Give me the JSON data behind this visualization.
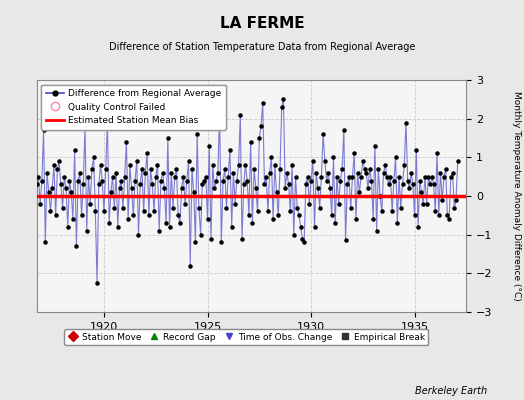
{
  "title": "LA FERME",
  "subtitle": "Difference of Station Temperature Data from Regional Average",
  "ylabel": "Monthly Temperature Anomaly Difference (°C)",
  "xlabel_bottom": "Berkeley Earth",
  "ylim": [
    -3,
    3
  ],
  "yticks": [
    -3,
    -2,
    -1,
    0,
    1,
    2,
    3
  ],
  "bias_value": 0.0,
  "bias_color": "#ff0000",
  "line_color": "#6666cc",
  "marker_color": "#000000",
  "bg_color": "#e8e8e8",
  "plot_bg_color": "#f5f5f5",
  "x_start_year": 1916.75,
  "x_end_year": 1937.5,
  "xticks": [
    1920,
    1925,
    1930,
    1935
  ],
  "data": [
    0.3,
    0.5,
    -0.2,
    0.4,
    1.7,
    -1.2,
    0.6,
    0.1,
    -0.4,
    0.2,
    0.8,
    -0.5,
    0.7,
    0.9,
    0.3,
    -0.3,
    0.5,
    0.2,
    -0.8,
    0.4,
    0.1,
    -0.6,
    1.2,
    -1.3,
    0.4,
    0.6,
    -0.5,
    0.3,
    1.8,
    -0.9,
    0.5,
    -0.2,
    0.7,
    1.0,
    -0.4,
    -2.25,
    0.3,
    0.8,
    0.4,
    -0.4,
    0.7,
    1.9,
    -0.7,
    0.1,
    0.5,
    -0.3,
    0.6,
    -0.8,
    0.2,
    0.4,
    -0.3,
    0.5,
    1.4,
    -0.6,
    0.8,
    0.2,
    -0.5,
    0.4,
    0.9,
    -1.0,
    0.3,
    0.7,
    -0.4,
    0.6,
    1.1,
    -0.5,
    0.7,
    0.3,
    -0.4,
    0.5,
    0.8,
    -0.9,
    0.4,
    0.6,
    0.2,
    -0.7,
    1.5,
    -0.8,
    0.6,
    -0.3,
    0.5,
    0.7,
    -0.5,
    -0.7,
    0.2,
    0.5,
    -0.2,
    0.4,
    0.9,
    -1.8,
    0.7,
    0.1,
    -1.2,
    1.6,
    -0.3,
    -1.0,
    0.3,
    0.4,
    0.5,
    -0.6,
    1.3,
    -1.1,
    0.8,
    0.2,
    0.4,
    0.6,
    2.2,
    -1.2,
    0.4,
    0.7,
    -0.3,
    0.5,
    1.2,
    -0.8,
    0.6,
    -0.2,
    0.4,
    0.8,
    2.1,
    -1.1,
    0.3,
    0.8,
    0.4,
    -0.5,
    1.4,
    -0.7,
    0.7,
    0.2,
    -0.4,
    1.5,
    1.8,
    2.4,
    0.3,
    0.5,
    -0.4,
    0.6,
    1.0,
    -0.6,
    0.8,
    0.1,
    -0.5,
    0.7,
    2.3,
    2.5,
    0.2,
    0.6,
    0.3,
    -0.4,
    0.8,
    -1.0,
    0.5,
    -0.3,
    -0.5,
    -0.8,
    -1.1,
    -1.2,
    0.3,
    0.5,
    -0.2,
    0.4,
    0.9,
    -0.8,
    0.6,
    0.2,
    -0.3,
    0.5,
    1.6,
    0.9,
    0.4,
    0.6,
    0.2,
    -0.5,
    1.0,
    -0.7,
    0.5,
    -0.2,
    0.4,
    0.7,
    1.7,
    -1.15,
    0.3,
    0.5,
    -0.3,
    0.5,
    1.1,
    -0.6,
    0.6,
    0.1,
    0.5,
    0.9,
    0.7,
    0.6,
    0.2,
    0.7,
    0.4,
    -0.6,
    1.3,
    -0.9,
    0.7,
    0.0,
    -0.4,
    0.6,
    0.8,
    0.5,
    0.3,
    0.5,
    -0.4,
    0.4,
    1.0,
    -0.7,
    0.5,
    -0.3,
    0.3,
    0.8,
    1.9,
    0.4,
    0.2,
    0.6,
    0.3,
    -0.5,
    1.2,
    -0.8,
    0.4,
    0.1,
    -0.2,
    0.5,
    -0.2,
    0.5,
    0.3,
    0.5,
    0.3,
    -0.4,
    1.1,
    -0.5,
    0.6,
    -0.1,
    0.5,
    0.7,
    -0.5,
    -0.6,
    0.5,
    0.6,
    -0.3,
    -0.1,
    0.9
  ],
  "legend1_items": [
    {
      "label": "Difference from Regional Average",
      "color": "#4444cc",
      "type": "line_dot"
    },
    {
      "label": "Quality Control Failed",
      "color": "#ff88aa",
      "type": "open_circle"
    },
    {
      "label": "Estimated Station Mean Bias",
      "color": "#ff0000",
      "type": "line"
    }
  ],
  "legend2_items": [
    {
      "label": "Station Move",
      "color": "#cc0000",
      "type": "diamond"
    },
    {
      "label": "Record Gap",
      "color": "#008800",
      "type": "triangle_up"
    },
    {
      "label": "Time of Obs. Change",
      "color": "#4444cc",
      "type": "triangle_down"
    },
    {
      "label": "Empirical Break",
      "color": "#333333",
      "type": "square"
    }
  ]
}
